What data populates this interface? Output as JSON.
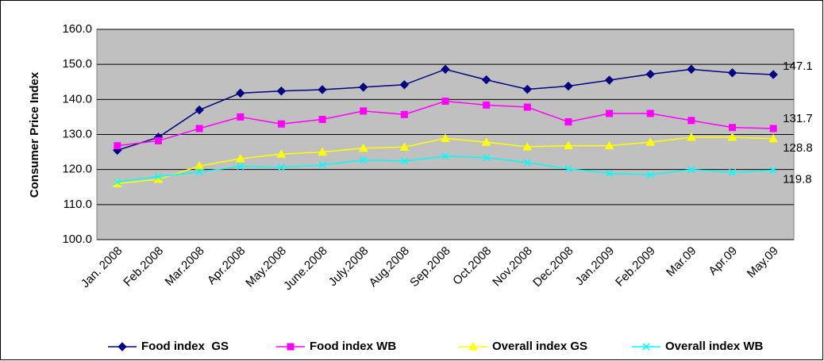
{
  "chart_data": {
    "type": "line",
    "y_label": "Consumer Price Index",
    "categories": [
      "Jan. 2008",
      "Feb.2008",
      "Mar.2008",
      "Apr.2008",
      "May.2008",
      "June.2008",
      "July.2008",
      "Aug.2008",
      "Sep.2008",
      "Oct.2008",
      "Nov.2008",
      "Dec.2008",
      "Jan.2009",
      "Feb.2009",
      "Mar.09",
      "Apr.09",
      "May.09"
    ],
    "ylim": [
      100,
      160
    ],
    "yticks": [
      {
        "value": 100,
        "label": "100.0"
      },
      {
        "value": 110,
        "label": "110.0"
      },
      {
        "value": 120,
        "label": "120.0"
      },
      {
        "value": 130,
        "label": "130.0"
      },
      {
        "value": 140,
        "label": "140.0"
      },
      {
        "value": 150,
        "label": "150.0"
      },
      {
        "value": 160,
        "label": "160.0"
      }
    ],
    "grid": true,
    "legend": "bottom",
    "series": [
      {
        "name": "Food index  GS",
        "color": "#000080",
        "marker": "diamond",
        "values": [
          125.5,
          129.2,
          137,
          141.8,
          142.4,
          142.8,
          143.5,
          144.2,
          148.6,
          145.6,
          142.9,
          143.8,
          145.5,
          147.2,
          148.6,
          147.6,
          147.1
        ],
        "value_labels": [
          null,
          null,
          null,
          null,
          null,
          null,
          null,
          null,
          null,
          null,
          null,
          null,
          null,
          null,
          null,
          null,
          "147.1"
        ]
      },
      {
        "name": "Food index WB",
        "color": "#ff00ff",
        "marker": "square",
        "values": [
          126.8,
          128.2,
          131.7,
          135,
          133,
          134.3,
          136.7,
          135.7,
          139.5,
          138.4,
          137.8,
          133.6,
          136,
          136,
          134,
          132,
          131.7
        ],
        "value_labels": [
          null,
          null,
          null,
          null,
          null,
          null,
          null,
          null,
          null,
          null,
          null,
          null,
          null,
          null,
          null,
          null,
          "131.7"
        ]
      },
      {
        "name": "Overall index GS",
        "color": "#ffff00",
        "marker": "triangle",
        "values": [
          116,
          117.2,
          121,
          123.1,
          124.4,
          125,
          126.1,
          126.4,
          128.9,
          127.8,
          126.5,
          126.8,
          126.8,
          127.8,
          129.2,
          129.2,
          128.8
        ],
        "value_labels": [
          null,
          null,
          null,
          null,
          null,
          null,
          null,
          null,
          null,
          null,
          null,
          null,
          null,
          null,
          null,
          null,
          "128.8"
        ]
      },
      {
        "name": "Overall index WB",
        "color": "#00ffff",
        "marker": "x",
        "values": [
          116.5,
          118,
          119.3,
          120.9,
          120.6,
          121.3,
          122.7,
          122.4,
          123.8,
          123.4,
          122,
          120.2,
          118.9,
          118.5,
          120,
          119.2,
          119.8
        ],
        "value_labels": [
          null,
          null,
          null,
          null,
          null,
          null,
          null,
          null,
          null,
          null,
          null,
          null,
          null,
          null,
          null,
          null,
          "119.8"
        ]
      }
    ]
  }
}
